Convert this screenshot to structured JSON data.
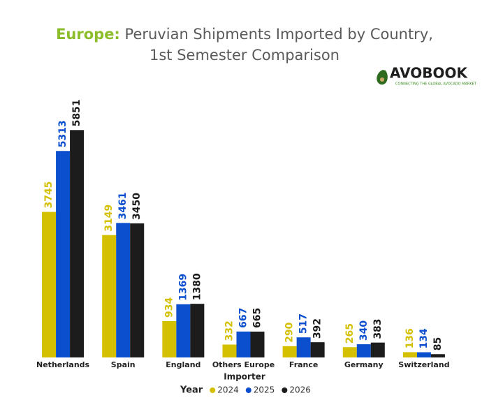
{
  "chart_data": {
    "type": "bar",
    "title_prefix": "Europe:",
    "title": "Peruvian Shipments Imported by Country, 1st Semester Comparison",
    "logo": "AVOBOOK",
    "logo_tagline": "CONNECTING THE GLOBAL AVOCADO MARKET",
    "x_label": "Importer",
    "legend_title": "Year",
    "categories": [
      "Netherlands",
      "Spain",
      "England",
      "Others Europe",
      "France",
      "Germany",
      "Switzerland"
    ],
    "series": [
      {
        "name": "2024",
        "color": "#d4c000",
        "values": [
          3745,
          3149,
          934,
          332,
          290,
          265,
          136
        ]
      },
      {
        "name": "2025",
        "color": "#0b4fcf",
        "values": [
          5313,
          3461,
          1369,
          667,
          517,
          340,
          134
        ]
      },
      {
        "name": "2026",
        "color": "#1c1c1c",
        "values": [
          5851,
          3450,
          1380,
          665,
          392,
          383,
          85
        ]
      }
    ],
    "ylim": [
      0,
      6000
    ]
  }
}
